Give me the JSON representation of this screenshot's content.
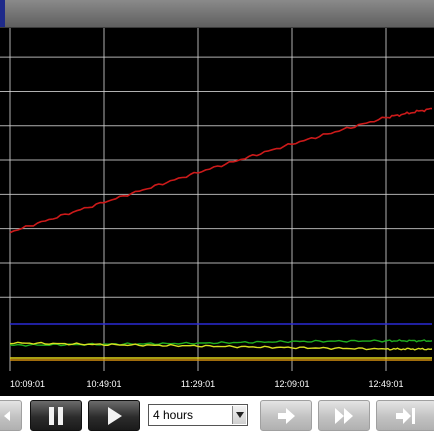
{
  "toolbar": {
    "time_range": {
      "selected": "4 hours"
    },
    "icons": {
      "prev": "rewind-icon",
      "pause": "pause-icon",
      "play": "play-icon",
      "forward": "arrow-right-icon",
      "fast_forward": "fast-forward-icon",
      "skip_end": "skip-to-end-icon",
      "dropdown": "chevron-down-icon"
    }
  },
  "chart_data": {
    "type": "line",
    "x_tick_labels": [
      "10:09:01",
      "10:49:01",
      "11:29:01",
      "12:09:01",
      "12:49:01"
    ],
    "x": [
      "10:09:01",
      "10:49:01",
      "11:29:01",
      "12:09:01",
      "12:49:01",
      "13:04"
    ],
    "grid": true,
    "background": "#000000",
    "gridline_color": "#d0d0d0",
    "series": [
      {
        "color": "#cc1a1a",
        "values": [
          0.405,
          0.492,
          0.579,
          0.662,
          0.739,
          0.765
        ]
      },
      {
        "color": "#2a2ad6",
        "values": [
          0.137,
          0.137,
          0.137,
          0.137,
          0.137,
          0.137
        ]
      },
      {
        "color": "#1fae1f",
        "values": [
          0.075,
          0.078,
          0.081,
          0.086,
          0.088,
          0.088
        ]
      },
      {
        "color": "#d8e020",
        "values": [
          0.082,
          0.077,
          0.073,
          0.068,
          0.064,
          0.064
        ]
      },
      {
        "color": "#e0d21a",
        "values": [
          0.038,
          0.038,
          0.038,
          0.038,
          0.038,
          0.038
        ]
      },
      {
        "color": "#d69010",
        "values": [
          0.032,
          0.032,
          0.032,
          0.032,
          0.032,
          0.032
        ]
      }
    ]
  }
}
